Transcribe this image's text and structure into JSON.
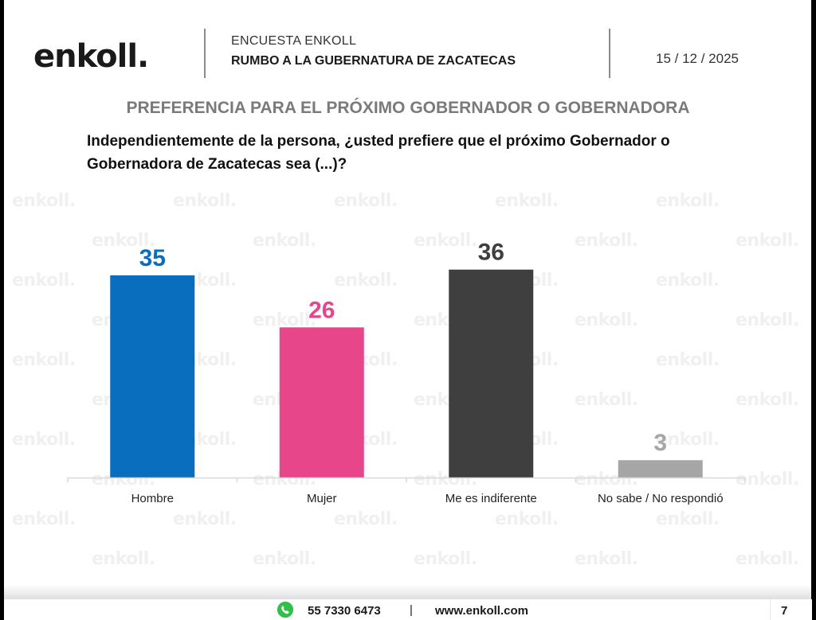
{
  "header": {
    "logo": "enkoll.",
    "survey_label": "ENCUESTA ENKOLL",
    "survey_title": "RUMBO A LA GUBERNATURA DE ZACATECAS",
    "date": "15 / 12 / 2025"
  },
  "section_title": "PREFERENCIA PARA EL PRÓXIMO GOBERNADOR O GOBERNADORA",
  "question": "Independientemente de la persona, ¿usted prefiere que el próximo Gobernador o Gobernadora de Zacatecas sea (...)?",
  "watermark_text": "enkoll.",
  "chart_data": {
    "type": "bar",
    "title": "PREFERENCIA PARA EL PRÓXIMO GOBERNADOR O GOBERNADORA",
    "xlabel": "",
    "ylabel": "",
    "ylim": [
      0,
      40
    ],
    "grid": false,
    "legend": "none",
    "categories": [
      "Hombre",
      "Mujer",
      "Me es indiferente",
      "No sabe / No respondió"
    ],
    "values": [
      35,
      26,
      36,
      3
    ],
    "colors": [
      "#0a6ebf",
      "#e8468a",
      "#3f3f3f",
      "#a6a6a6"
    ],
    "label_colors": [
      "#0a6ebf",
      "#e8468a",
      "#3f3f3f",
      "#a6a6a6"
    ]
  },
  "footer": {
    "whatsapp_icon": "whatsapp-icon",
    "phone": "55 7330 6473",
    "separator": "|",
    "website": "www.enkoll.com",
    "page_number": "7"
  }
}
